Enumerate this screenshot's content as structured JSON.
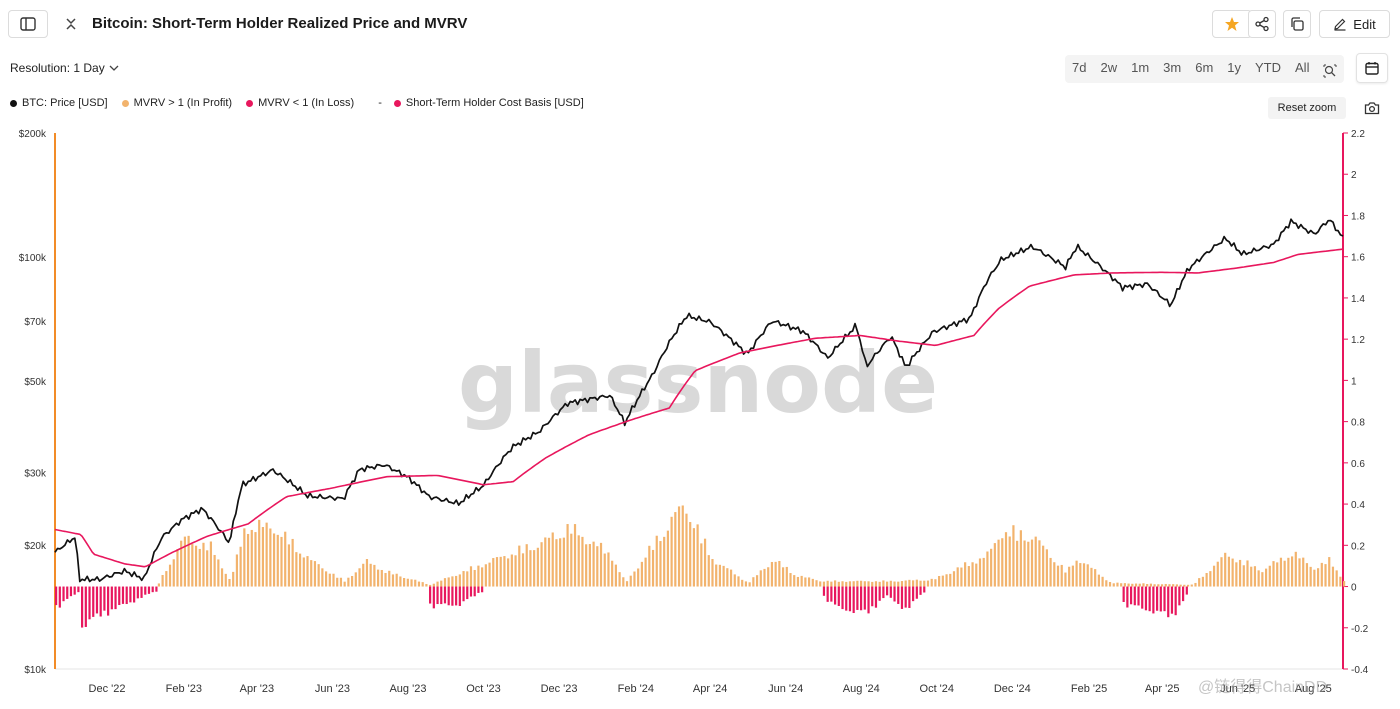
{
  "header": {
    "title": "Bitcoin: Short-Term Holder Realized Price and MVRV",
    "edit_label": "Edit"
  },
  "toolbar": {
    "resolution_label": "Resolution: 1 Day",
    "ranges": [
      "7d",
      "2w",
      "1m",
      "3m",
      "6m",
      "1y",
      "YTD",
      "All"
    ],
    "reset_zoom_label": "Reset zoom",
    "star_color": "#f5a623"
  },
  "legend": [
    {
      "label": "BTC: Price [USD]",
      "color": "#111111"
    },
    {
      "label": "MVRV > 1 (In Profit)",
      "color": "#f2b36d"
    },
    {
      "label": "MVRV < 1 (In Loss)",
      "color": "#e8175d"
    },
    {
      "label": "Short-Term Holder Cost Basis [USD]",
      "color": "#e8175d",
      "prefix": "-"
    }
  ],
  "watermark": "glassnode",
  "credit": "@链得得ChainDD",
  "chart_data": {
    "type": "line",
    "x_range": [
      "2022-10-20",
      "2025-08-25"
    ],
    "x_tick_labels": [
      "Dec '22",
      "Feb '23",
      "Apr '23",
      "Jun '23",
      "Aug '23",
      "Oct '23",
      "Dec '23",
      "Feb '24",
      "Apr '24",
      "Jun '24",
      "Aug '24",
      "Oct '24",
      "Dec '24",
      "Feb '25",
      "Apr '25",
      "Jun '25",
      "Aug '25"
    ],
    "y_left": {
      "scale": "log",
      "range": [
        10000,
        200000
      ],
      "ticks": [
        10000,
        20000,
        30000,
        50000,
        70000,
        100000,
        200000
      ],
      "tick_labels": [
        "$10k",
        "$20k",
        "$30k",
        "$50k",
        "$70k",
        "$100k",
        "$200k"
      ],
      "axis_color": "#f28c28"
    },
    "y_right": {
      "scale": "linear",
      "range": [
        -0.4,
        2.2
      ],
      "ticks": [
        -0.4,
        -0.2,
        0,
        0.2,
        0.4,
        0.6,
        0.8,
        1,
        1.2,
        1.4,
        1.6,
        1.8,
        2,
        2.2
      ],
      "tick_labels": [
        "-0.4",
        "-0.2",
        "0",
        "0.2",
        "0.4",
        "0.6",
        "0.8",
        "1",
        "1.2",
        "1.4",
        "1.6",
        "1.8",
        "2",
        "2.2"
      ],
      "axis_color": "#e8175d"
    },
    "series": [
      {
        "name": "BTC: Price [USD]",
        "axis": "left",
        "color": "#111111",
        "points": [
          [
            "2022-10-20",
            19200
          ],
          [
            "2022-11-05",
            20900
          ],
          [
            "2022-11-09",
            16500
          ],
          [
            "2022-11-25",
            16500
          ],
          [
            "2022-12-15",
            17300
          ],
          [
            "2022-12-31",
            16550
          ],
          [
            "2023-01-14",
            20800
          ],
          [
            "2023-01-31",
            23100
          ],
          [
            "2023-02-16",
            24500
          ],
          [
            "2023-03-10",
            20200
          ],
          [
            "2023-03-20",
            28000
          ],
          [
            "2023-04-14",
            30400
          ],
          [
            "2023-05-12",
            26300
          ],
          [
            "2023-06-10",
            25900
          ],
          [
            "2023-06-23",
            30500
          ],
          [
            "2023-07-13",
            31300
          ],
          [
            "2023-08-01",
            29200
          ],
          [
            "2023-08-18",
            26200
          ],
          [
            "2023-09-11",
            25200
          ],
          [
            "2023-10-01",
            27900
          ],
          [
            "2023-10-24",
            34500
          ],
          [
            "2023-11-15",
            37700
          ],
          [
            "2023-12-08",
            44200
          ],
          [
            "2024-01-11",
            46100
          ],
          [
            "2024-01-23",
            39500
          ],
          [
            "2024-02-15",
            52000
          ],
          [
            "2024-02-28",
            62000
          ],
          [
            "2024-03-13",
            72000
          ],
          [
            "2024-04-01",
            69600
          ],
          [
            "2024-05-01",
            58000
          ],
          [
            "2024-05-21",
            70000
          ],
          [
            "2024-06-15",
            66000
          ],
          [
            "2024-07-05",
            56800
          ],
          [
            "2024-07-28",
            68200
          ],
          [
            "2024-08-05",
            54100
          ],
          [
            "2024-08-25",
            64200
          ],
          [
            "2024-09-06",
            53900
          ],
          [
            "2024-09-28",
            65800
          ],
          [
            "2024-10-28",
            71000
          ],
          [
            "2024-11-11",
            88000
          ],
          [
            "2024-11-22",
            98500
          ],
          [
            "2024-12-17",
            106000
          ],
          [
            "2025-01-13",
            94500
          ],
          [
            "2025-01-22",
            106100
          ],
          [
            "2025-02-28",
            84300
          ],
          [
            "2025-03-20",
            86000
          ],
          [
            "2025-04-08",
            76300
          ],
          [
            "2025-04-22",
            93500
          ],
          [
            "2025-05-22",
            111000
          ],
          [
            "2025-06-05",
            101500
          ],
          [
            "2025-06-30",
            107200
          ],
          [
            "2025-07-14",
            122000
          ],
          [
            "2025-08-02",
            113500
          ],
          [
            "2025-08-14",
            123500
          ],
          [
            "2025-08-25",
            111000
          ]
        ]
      },
      {
        "name": "Short-Term Holder Cost Basis [USD]",
        "axis": "left",
        "color": "#e8175d",
        "points": [
          [
            "2022-10-20",
            21800
          ],
          [
            "2022-11-10",
            21200
          ],
          [
            "2022-11-20",
            19000
          ],
          [
            "2022-12-15",
            18000
          ],
          [
            "2023-01-01",
            17700
          ],
          [
            "2023-01-20",
            19000
          ],
          [
            "2023-02-20",
            21000
          ],
          [
            "2023-03-25",
            22500
          ],
          [
            "2023-04-25",
            26200
          ],
          [
            "2023-06-01",
            27500
          ],
          [
            "2023-07-15",
            29300
          ],
          [
            "2023-08-25",
            29500
          ],
          [
            "2023-10-01",
            28000
          ],
          [
            "2023-10-25",
            28500
          ],
          [
            "2023-11-20",
            32500
          ],
          [
            "2023-12-25",
            37000
          ],
          [
            "2024-01-31",
            40500
          ],
          [
            "2024-02-28",
            43000
          ],
          [
            "2024-03-20",
            53000
          ],
          [
            "2024-04-25",
            58500
          ],
          [
            "2024-05-25",
            61000
          ],
          [
            "2024-06-25",
            63500
          ],
          [
            "2024-07-31",
            64500
          ],
          [
            "2024-08-31",
            62500
          ],
          [
            "2024-09-30",
            61000
          ],
          [
            "2024-10-31",
            64500
          ],
          [
            "2024-11-20",
            75000
          ],
          [
            "2024-12-15",
            85000
          ],
          [
            "2025-01-20",
            90500
          ],
          [
            "2025-02-20",
            91500
          ],
          [
            "2025-03-31",
            91800
          ],
          [
            "2025-04-30",
            91500
          ],
          [
            "2025-05-31",
            94000
          ],
          [
            "2025-06-30",
            97000
          ],
          [
            "2025-07-20",
            101500
          ],
          [
            "2025-08-25",
            104500
          ]
        ]
      },
      {
        "name": "MVRV > 1 (In Profit)",
        "axis": "right",
        "color": "#f2b36d",
        "baseline": 0,
        "points": [
          [
            "2023-01-11",
            0.02
          ],
          [
            "2023-01-31",
            0.27
          ],
          [
            "2023-02-22",
            0.22
          ],
          [
            "2023-03-10",
            0.03
          ],
          [
            "2023-03-22",
            0.34
          ],
          [
            "2023-04-14",
            0.33
          ],
          [
            "2023-05-15",
            0.14
          ],
          [
            "2023-06-10",
            0.03
          ],
          [
            "2023-06-28",
            0.14
          ],
          [
            "2023-07-15",
            0.08
          ],
          [
            "2023-08-18",
            0.01
          ],
          [
            "2023-10-24",
            0.19
          ],
          [
            "2023-11-15",
            0.24
          ],
          [
            "2023-12-08",
            0.33
          ],
          [
            "2024-01-11",
            0.18
          ],
          [
            "2024-01-23",
            0.02
          ],
          [
            "2024-03-05",
            0.42
          ],
          [
            "2024-03-13",
            0.44
          ],
          [
            "2024-04-01",
            0.16
          ],
          [
            "2024-05-01",
            0.02
          ],
          [
            "2024-05-21",
            0.15
          ],
          [
            "2024-06-10",
            0.06
          ],
          [
            "2024-06-30",
            0.03
          ],
          [
            "2024-08-25",
            0.03
          ],
          [
            "2024-09-28",
            0.04
          ],
          [
            "2024-11-11",
            0.18
          ],
          [
            "2024-11-22",
            0.31
          ],
          [
            "2024-12-17",
            0.28
          ],
          [
            "2025-01-13",
            0.08
          ],
          [
            "2025-01-22",
            0.16
          ],
          [
            "2025-02-18",
            0.02
          ],
          [
            "2025-04-25",
            0.01
          ],
          [
            "2025-05-22",
            0.18
          ],
          [
            "2025-06-20",
            0.09
          ],
          [
            "2025-07-14",
            0.19
          ],
          [
            "2025-08-02",
            0.1
          ],
          [
            "2025-08-14",
            0.15
          ],
          [
            "2025-08-25",
            0.03
          ]
        ]
      },
      {
        "name": "MVRV < 1 (In Loss)",
        "axis": "right",
        "color": "#e8175d",
        "baseline": 0,
        "points": [
          [
            "2022-10-20",
            -0.12
          ],
          [
            "2022-11-07",
            -0.03
          ],
          [
            "2022-11-10",
            -0.22
          ],
          [
            "2022-11-25",
            -0.16
          ],
          [
            "2022-12-15",
            -0.1
          ],
          [
            "2023-01-11",
            -0.02
          ],
          [
            "2023-08-18",
            -0.11
          ],
          [
            "2023-09-11",
            -0.1
          ],
          [
            "2023-10-01",
            -0.02
          ],
          [
            "2024-07-01",
            -0.06
          ],
          [
            "2024-07-12",
            -0.12
          ],
          [
            "2024-08-05",
            -0.15
          ],
          [
            "2024-08-20",
            -0.05
          ],
          [
            "2024-09-06",
            -0.13
          ],
          [
            "2024-09-20",
            -0.03
          ],
          [
            "2025-02-28",
            -0.1
          ],
          [
            "2025-03-20",
            -0.13
          ],
          [
            "2025-04-08",
            -0.17
          ],
          [
            "2025-04-20",
            -0.05
          ]
        ]
      }
    ]
  }
}
